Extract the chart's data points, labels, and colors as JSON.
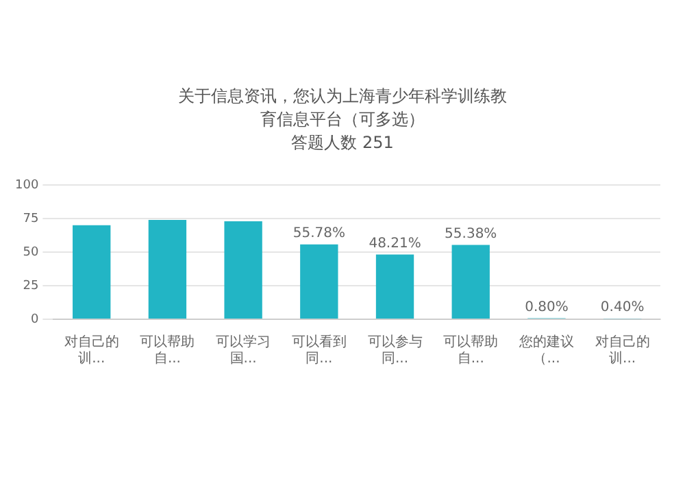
{
  "chart_data": {
    "type": "bar",
    "title": "关于信息资讯，您认为上海青少年科学训练教育信息平台（可多选）",
    "subtitle": "答题人数 251",
    "categories": [
      "对自己的训...",
      "可以帮助自...",
      "可以学习国...",
      "可以看到同...",
      "可以参与同...",
      "可以帮助自...",
      "您的建议（...",
      "对自己的训..."
    ],
    "values": [
      70,
      74,
      73,
      55.78,
      48.21,
      55.38,
      0.8,
      0.4
    ],
    "value_labels": [
      null,
      null,
      null,
      "55.78%",
      "48.21%",
      "55.38%",
      "0.80%",
      "0.40%"
    ],
    "color": "#22b5c5",
    "ylim": [
      0,
      100
    ],
    "yticks": [
      0,
      25,
      50,
      75,
      100
    ],
    "grid": "y",
    "legend": false
  }
}
